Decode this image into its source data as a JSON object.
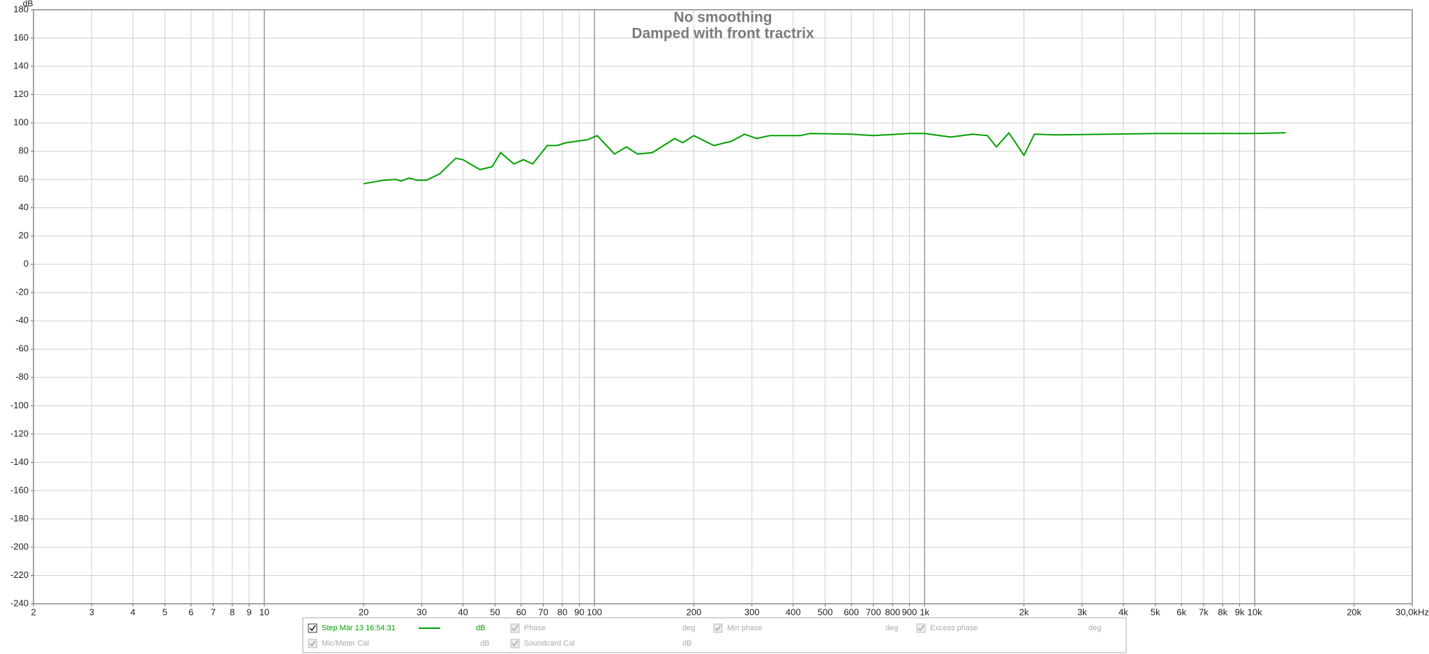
{
  "chart_data": {
    "type": "line",
    "title": "No smoothing",
    "subtitle": "Damped with front tractrix",
    "ylabel": "dB",
    "log_x": true,
    "grid": true,
    "xlim": [
      2,
      30000
    ],
    "xticks": [
      2,
      3,
      4,
      5,
      6,
      7,
      8,
      9,
      10,
      20,
      30,
      40,
      50,
      60,
      70,
      80,
      90,
      100,
      200,
      300,
      400,
      500,
      600,
      700,
      800,
      900,
      {
        "value": 1000,
        "label": "1k"
      },
      {
        "value": 2000,
        "label": "2k"
      },
      {
        "value": 3000,
        "label": "3k"
      },
      {
        "value": 4000,
        "label": "4k"
      },
      {
        "value": 5000,
        "label": "5k"
      },
      {
        "value": 6000,
        "label": "6k"
      },
      {
        "value": 7000,
        "label": "7k"
      },
      {
        "value": 8000,
        "label": "8k"
      },
      {
        "value": 9000,
        "label": "9k"
      },
      {
        "value": 10000,
        "label": "10k"
      },
      {
        "value": 20000,
        "label": "20k"
      },
      {
        "value": 30000,
        "label": "30,0kHz"
      }
    ],
    "ylim": [
      -240,
      180
    ],
    "yticks": [
      -240,
      -220,
      -200,
      -180,
      -160,
      -140,
      -120,
      -100,
      -80,
      -60,
      -40,
      -20,
      0,
      20,
      40,
      60,
      80,
      100,
      120,
      140,
      160,
      180
    ],
    "x": [
      20,
      23,
      25,
      26,
      27.5,
      29,
      31,
      34,
      38,
      40,
      45,
      49,
      52,
      57,
      61,
      65,
      72,
      77,
      82,
      95,
      102,
      115,
      125,
      135,
      150,
      175,
      185,
      200,
      230,
      260,
      285,
      310,
      340,
      420,
      450,
      600,
      700,
      900,
      1000,
      1200,
      1400,
      1550,
      1650,
      1800,
      2000,
      2150,
      2500,
      5000,
      10000,
      12400
    ],
    "series": [
      {
        "name": "Step Mär 13 16:54:31",
        "unit": "dB",
        "color": "#00a000",
        "values": [
          57,
          59.5,
          60,
          59,
          61,
          59.5,
          59.5,
          64,
          75,
          74,
          67,
          69,
          79,
          71,
          74,
          71,
          84,
          84,
          86,
          88,
          91,
          78,
          83,
          78,
          79,
          89,
          86,
          91,
          84,
          87,
          92,
          89,
          91,
          91,
          92.5,
          92,
          91,
          92.5,
          92.5,
          90,
          92,
          91,
          83,
          93,
          77,
          92,
          91.5,
          92.5,
          92.5,
          93
        ]
      }
    ],
    "legend_items": [
      {
        "name": "Phase",
        "unit": "deg"
      },
      {
        "name": "Min phase",
        "unit": "deg"
      },
      {
        "name": "Excess phase",
        "unit": "deg"
      },
      {
        "name": "Mic/Meter Cal",
        "unit": "dB"
      },
      {
        "name": "Soundcard Cal",
        "unit": "dB"
      }
    ]
  }
}
